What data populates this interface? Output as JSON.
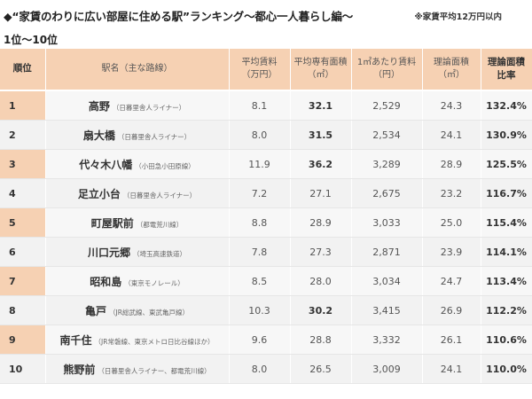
{
  "header": {
    "title": "◆“家賃のわりに広い部屋に住める駅”ランキング～都心一人暮らし編～",
    "note": "※家賃平均12万円以内",
    "subtitle": "1位～10位"
  },
  "table": {
    "columns": [
      {
        "line1": "順位",
        "line2": ""
      },
      {
        "line1": "駅名（主な路線）",
        "line2": ""
      },
      {
        "line1": "平均賃料",
        "line2": "（万円）"
      },
      {
        "line1": "平均専有面積",
        "line2": "（㎡）"
      },
      {
        "line1": "1㎡あたり賃料",
        "line2": "（円）"
      },
      {
        "line1": "理論面積",
        "line2": "（㎡）"
      },
      {
        "line1": "理論面積",
        "line2": "比率"
      }
    ],
    "rows": [
      {
        "rank": "1",
        "station": "高野",
        "line": "（日暮里舎人ライナー）",
        "rent": "8.1",
        "area": "32.1",
        "per_sqm": "2,529",
        "theory": "24.3",
        "ratio": "132.4%"
      },
      {
        "rank": "2",
        "station": "扇大橋",
        "line": "（日暮里舎人ライナー）",
        "rent": "8.0",
        "area": "31.5",
        "per_sqm": "2,534",
        "theory": "24.1",
        "ratio": "130.9%"
      },
      {
        "rank": "3",
        "station": "代々木八幡",
        "line": "（小田急小田原線）",
        "rent": "11.9",
        "area": "36.2",
        "per_sqm": "3,289",
        "theory": "28.9",
        "ratio": "125.5%"
      },
      {
        "rank": "4",
        "station": "足立小台",
        "line": "（日暮里舎人ライナー）",
        "rent": "7.2",
        "area": "27.1",
        "per_sqm": "2,675",
        "theory": "23.2",
        "ratio": "116.7%"
      },
      {
        "rank": "5",
        "station": "町屋駅前",
        "line": "（都電荒川線）",
        "rent": "8.8",
        "area": "28.9",
        "per_sqm": "3,033",
        "theory": "25.0",
        "ratio": "115.4%"
      },
      {
        "rank": "6",
        "station": "川口元郷",
        "line": "（埼玉高速鉄道）",
        "rent": "7.8",
        "area": "27.3",
        "per_sqm": "2,871",
        "theory": "23.9",
        "ratio": "114.1%"
      },
      {
        "rank": "7",
        "station": "昭和島",
        "line": "（東京モノレール）",
        "rent": "8.5",
        "area": "28.0",
        "per_sqm": "3,034",
        "theory": "24.7",
        "ratio": "113.4%"
      },
      {
        "rank": "8",
        "station": "亀戸",
        "line": "（JR総武線、東武亀戸線）",
        "rent": "10.3",
        "area": "30.2",
        "per_sqm": "3,415",
        "theory": "26.9",
        "ratio": "112.2%"
      },
      {
        "rank": "9",
        "station": "南千住",
        "line": "（JR常磐線、東京メトロ日比谷線ほか）",
        "rent": "9.6",
        "area": "28.8",
        "per_sqm": "3,332",
        "theory": "26.1",
        "ratio": "110.6%"
      },
      {
        "rank": "10",
        "station": "熊野前",
        "line": "（日暮里舎人ライナー、都電荒川線）",
        "rent": "8.0",
        "area": "26.5",
        "per_sqm": "3,009",
        "theory": "24.1",
        "ratio": "110.0%"
      }
    ],
    "bold_area_ranks": [
      "1",
      "2",
      "3",
      "8"
    ]
  },
  "colors": {
    "header_bg": "#f6d1b3",
    "row_bg": "#f7f7f7"
  }
}
